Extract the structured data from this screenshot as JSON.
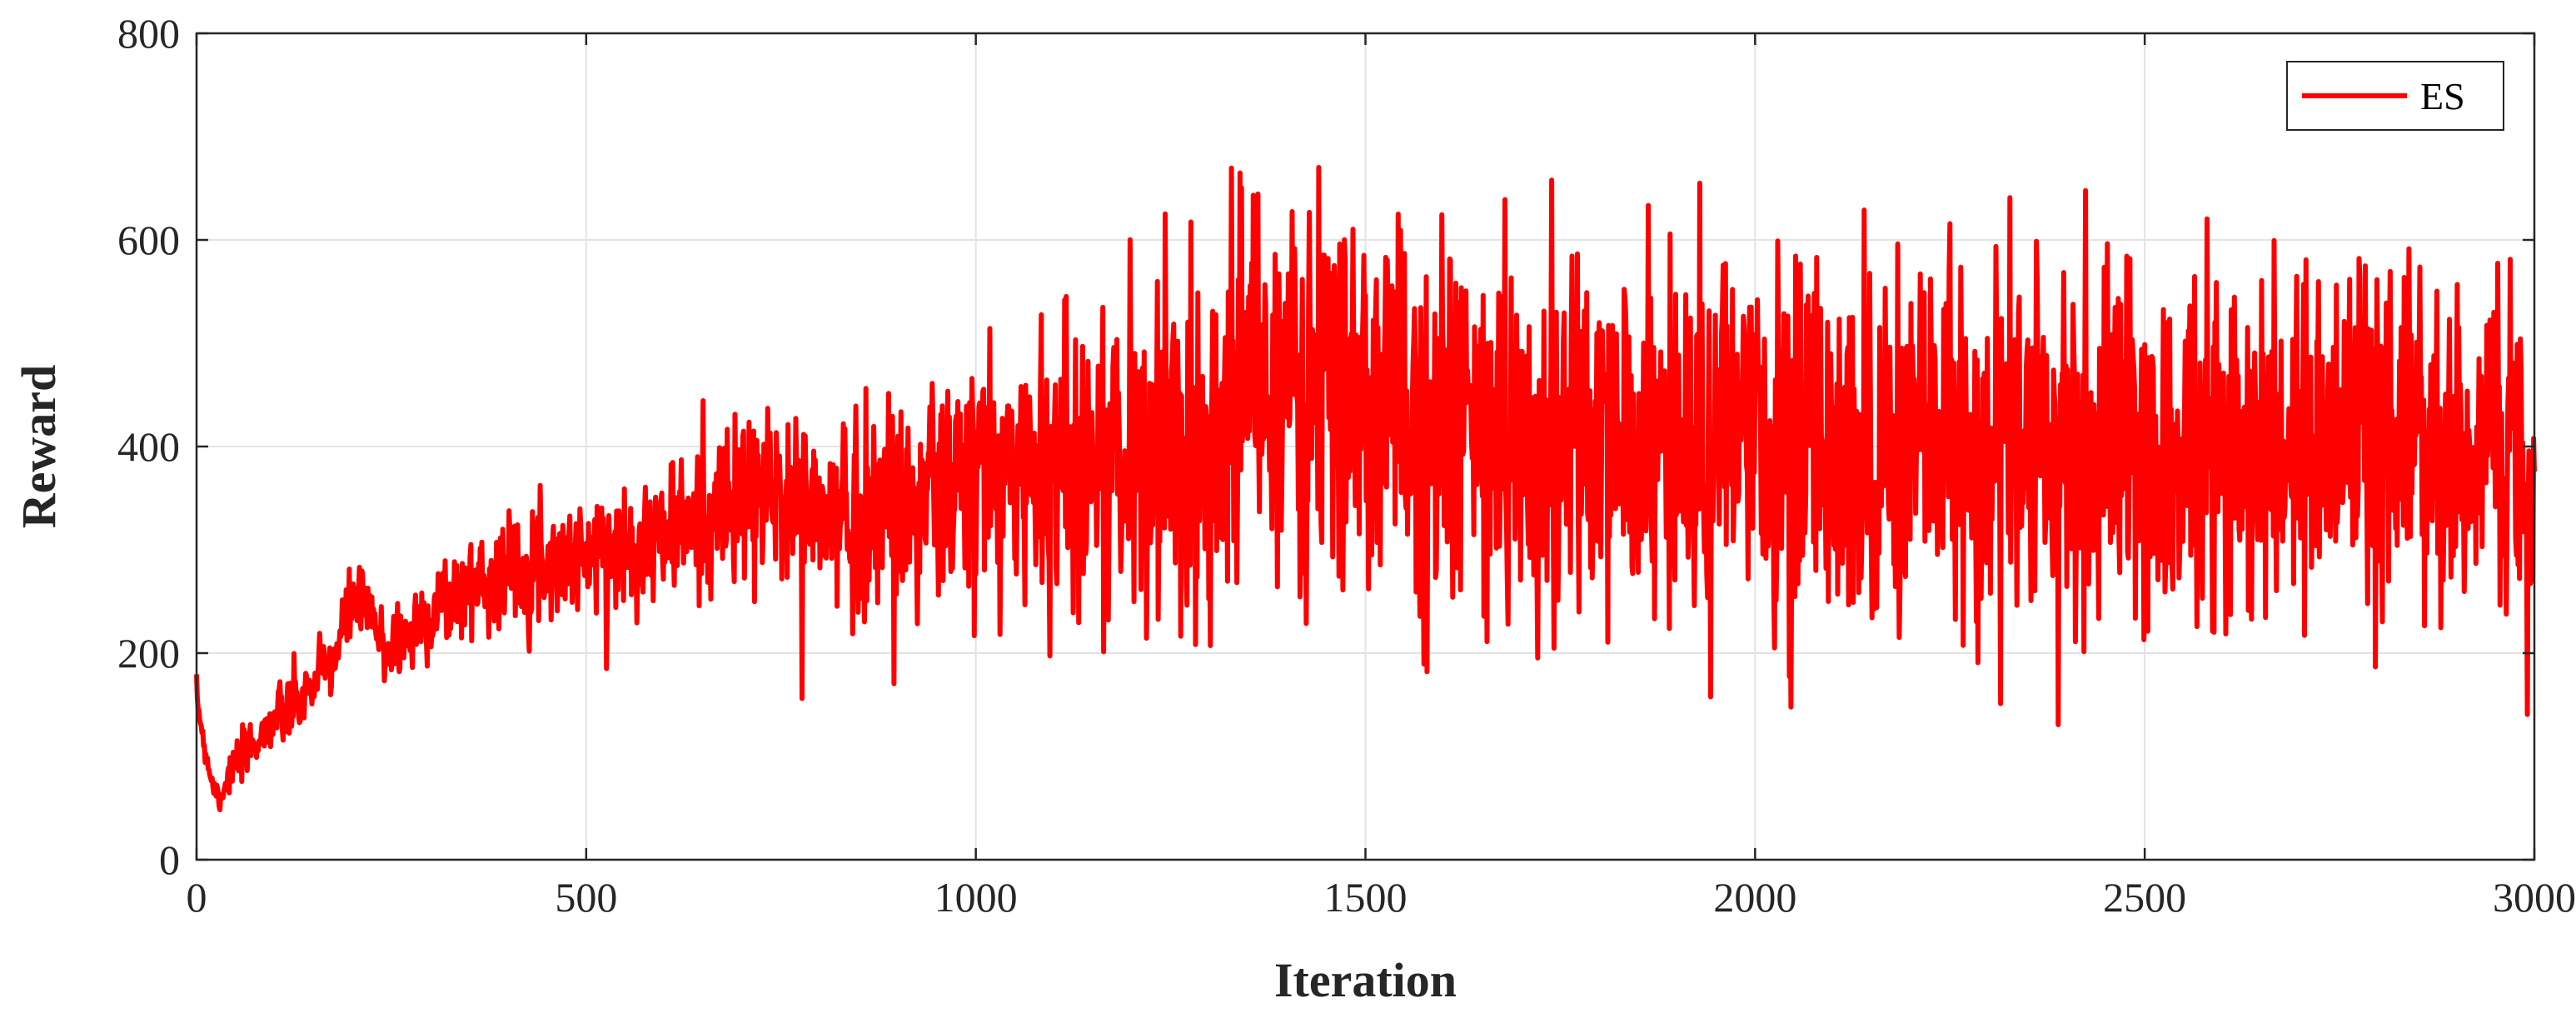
{
  "chart_data": {
    "type": "line",
    "title": "",
    "xlabel": "Iteration",
    "ylabel": "Reward",
    "xlim": [
      0,
      3000
    ],
    "ylim": [
      0,
      800
    ],
    "xticks": [
      0,
      500,
      1000,
      1500,
      2000,
      2500,
      3000
    ],
    "yticks": [
      0,
      200,
      400,
      600,
      800
    ],
    "xtick_labels": [
      "0",
      "500",
      "1000",
      "1500",
      "2000",
      "2500",
      "3000"
    ],
    "ytick_labels": [
      "0",
      "200",
      "400",
      "600",
      "800"
    ],
    "grid": true,
    "legend_position": "top-right",
    "colors": {
      "series": "#ff0000",
      "grid": "#e3e3e3",
      "axis": "#262626"
    },
    "trend_points": [
      [
        0,
        160
      ],
      [
        10,
        110
      ],
      [
        20,
        75
      ],
      [
        30,
        60
      ],
      [
        40,
        80
      ],
      [
        60,
        100
      ],
      [
        80,
        120
      ],
      [
        100,
        135
      ],
      [
        130,
        150
      ],
      [
        150,
        170
      ],
      [
        180,
        200
      ],
      [
        200,
        250
      ],
      [
        220,
        240
      ],
      [
        240,
        205
      ],
      [
        270,
        215
      ],
      [
        300,
        240
      ],
      [
        350,
        265
      ],
      [
        400,
        280
      ],
      [
        450,
        290
      ],
      [
        500,
        295
      ],
      [
        550,
        305
      ],
      [
        600,
        315
      ],
      [
        650,
        330
      ],
      [
        700,
        345
      ],
      [
        750,
        355
      ],
      [
        800,
        330
      ],
      [
        850,
        335
      ],
      [
        900,
        345
      ],
      [
        950,
        355
      ],
      [
        1000,
        370
      ],
      [
        1100,
        380
      ],
      [
        1200,
        390
      ],
      [
        1300,
        405
      ],
      [
        1350,
        470
      ],
      [
        1400,
        450
      ],
      [
        1500,
        440
      ],
      [
        1600,
        420
      ],
      [
        1700,
        405
      ],
      [
        1800,
        400
      ],
      [
        1900,
        395
      ],
      [
        2000,
        395
      ],
      [
        2200,
        400
      ],
      [
        2400,
        400
      ],
      [
        2600,
        395
      ],
      [
        2800,
        405
      ],
      [
        3000,
        395
      ]
    ],
    "noise_points": [
      [
        0,
        5
      ],
      [
        100,
        15
      ],
      [
        200,
        18
      ],
      [
        300,
        22
      ],
      [
        500,
        25
      ],
      [
        700,
        40
      ],
      [
        900,
        55
      ],
      [
        1100,
        70
      ],
      [
        1300,
        85
      ],
      [
        1400,
        90
      ],
      [
        1600,
        90
      ],
      [
        2000,
        85
      ],
      [
        2500,
        85
      ],
      [
        3000,
        85
      ]
    ],
    "noise_seed": 7,
    "series": [
      {
        "name": "ES",
        "color": "#ff0000",
        "points": 3000
      }
    ]
  }
}
